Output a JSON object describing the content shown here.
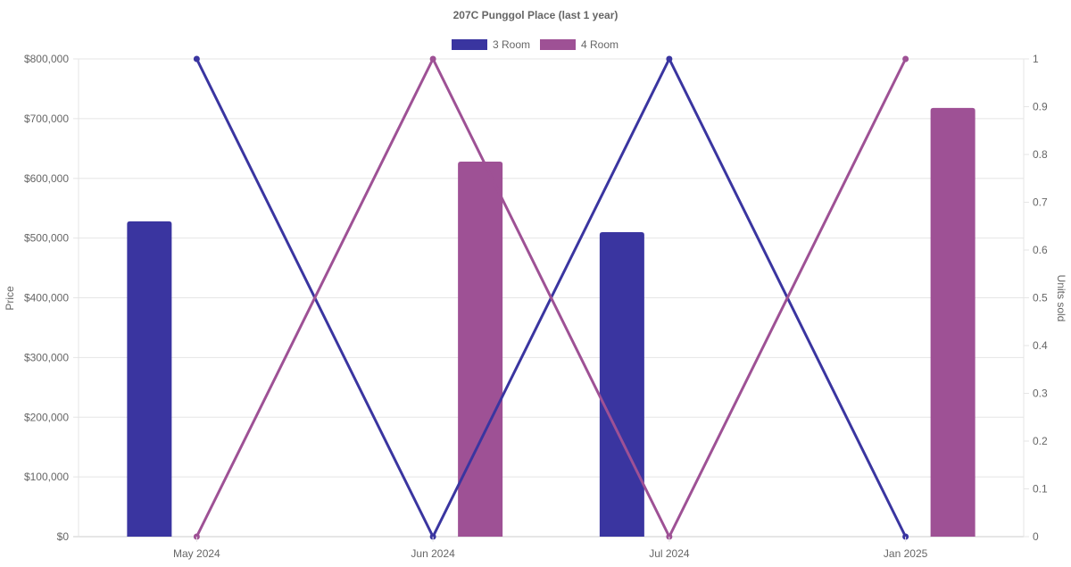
{
  "chart_data": {
    "type": "bar",
    "title": "207C Punggol Place (last 1 year)",
    "categories": [
      "May 2024",
      "Jun 2024",
      "Jul 2024",
      "Jan 2025"
    ],
    "series": [
      {
        "name": "3 Room",
        "color": "#3a35a0",
        "price": [
          528000,
          null,
          510000,
          null
        ],
        "units_sold": [
          1,
          0,
          1,
          0
        ]
      },
      {
        "name": "4 Room",
        "color": "#9e5195",
        "price": [
          null,
          628000,
          null,
          718000
        ],
        "units_sold": [
          0,
          1,
          0,
          1
        ]
      }
    ],
    "y_left": {
      "label": "Price",
      "min": 0,
      "max": 800000,
      "ticks": [
        "$0",
        "$100,000",
        "$200,000",
        "$300,000",
        "$400,000",
        "$500,000",
        "$600,000",
        "$700,000",
        "$800,000"
      ]
    },
    "y_right": {
      "label": "Units sold",
      "min": 0,
      "max": 1,
      "ticks": [
        "0",
        "0.1",
        "0.2",
        "0.3",
        "0.4",
        "0.5",
        "0.6",
        "0.7",
        "0.8",
        "0.9",
        "1"
      ]
    },
    "grid": true,
    "legend": "top-center"
  }
}
